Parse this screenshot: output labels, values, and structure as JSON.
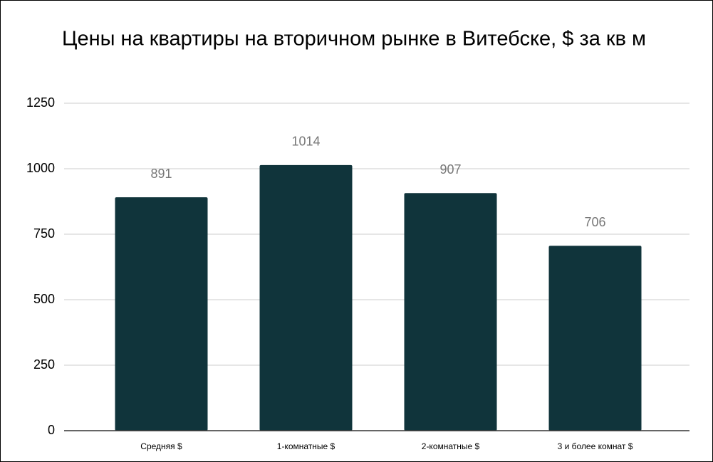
{
  "chart_data": {
    "type": "bar",
    "title": "Цены на квартиры на вторичном рынке в Витебске, $ за кв м",
    "categories": [
      "Средняя $",
      "1-комнатные $",
      "2-комнатные $",
      "3 и более комнат $"
    ],
    "values": [
      891,
      1014,
      907,
      706
    ],
    "color": "#10343b",
    "ylim": [
      0,
      1250
    ],
    "yticks": [
      0,
      250,
      500,
      750,
      1000,
      1250
    ],
    "grid": true
  }
}
